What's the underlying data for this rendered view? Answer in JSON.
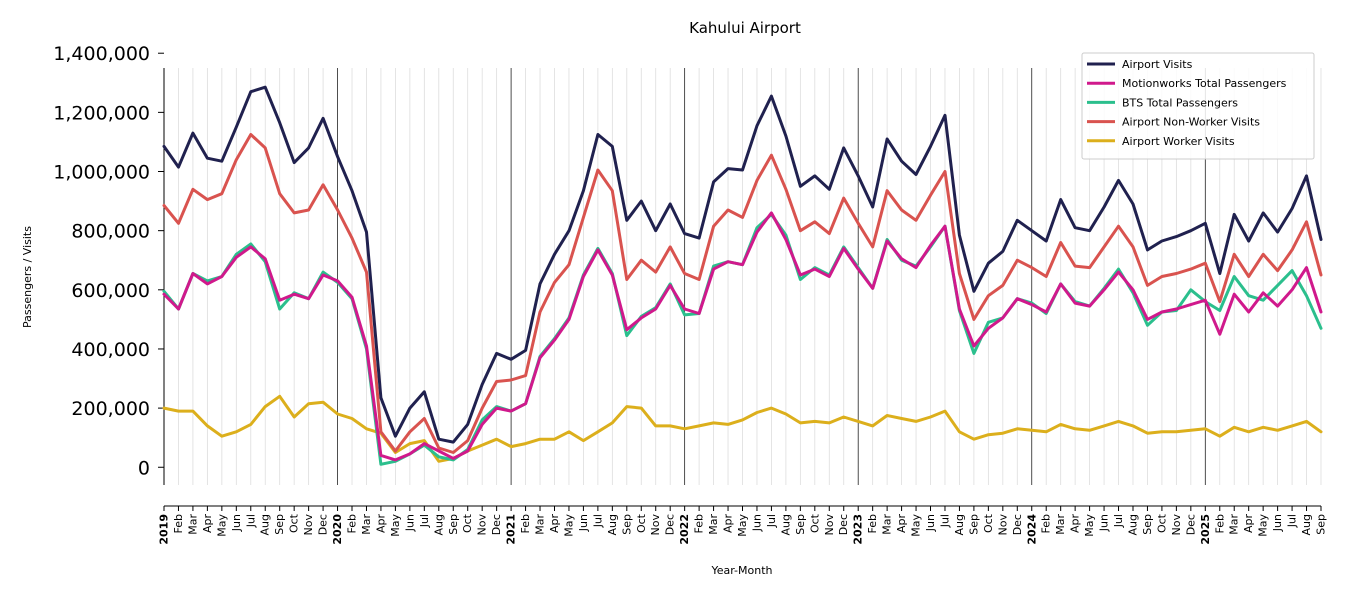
{
  "chart_data": {
    "type": "line",
    "title": "Kahului Airport",
    "xlabel": "Year-Month",
    "ylabel": "Passengers / Visits",
    "ylim": [
      -60000,
      1350000
    ],
    "yticks": [
      0,
      200000,
      400000,
      600000,
      800000,
      1000000,
      1200000,
      1400000
    ],
    "ytick_labels": [
      "0",
      "200,000",
      "400,000",
      "600,000",
      "800,000",
      "1,000,000",
      "1,200,000",
      "1,400,000"
    ],
    "grid": "vertical monthly gridlines, darker lines at each January",
    "legend_position": "top-right",
    "x": [
      "2019-01",
      "2019-02",
      "2019-03",
      "2019-04",
      "2019-05",
      "2019-06",
      "2019-07",
      "2019-08",
      "2019-09",
      "2019-10",
      "2019-11",
      "2019-12",
      "2020-01",
      "2020-02",
      "2020-03",
      "2020-04",
      "2020-05",
      "2020-06",
      "2020-07",
      "2020-08",
      "2020-09",
      "2020-10",
      "2020-11",
      "2020-12",
      "2021-01",
      "2021-02",
      "2021-03",
      "2021-04",
      "2021-05",
      "2021-06",
      "2021-07",
      "2021-08",
      "2021-09",
      "2021-10",
      "2021-11",
      "2021-12",
      "2022-01",
      "2022-02",
      "2022-03",
      "2022-04",
      "2022-05",
      "2022-06",
      "2022-07",
      "2022-08",
      "2022-09",
      "2022-10",
      "2022-11",
      "2022-12",
      "2023-01",
      "2023-02",
      "2023-03",
      "2023-04",
      "2023-05",
      "2023-06",
      "2023-07",
      "2023-08",
      "2023-09",
      "2023-10",
      "2023-11",
      "2023-12",
      "2024-01",
      "2024-02",
      "2024-03",
      "2024-04",
      "2024-05",
      "2024-06",
      "2024-07",
      "2024-08",
      "2024-09",
      "2024-10",
      "2024-11",
      "2024-12",
      "2025-01",
      "2025-02",
      "2025-03",
      "2025-04",
      "2025-05",
      "2025-06",
      "2025-07",
      "2025-08",
      "2025-09"
    ],
    "x_tick_labels": [
      "2019",
      "Feb",
      "Mar",
      "Apr",
      "May",
      "Jun",
      "Jul",
      "Aug",
      "Sep",
      "Oct",
      "Nov",
      "Dec",
      "2020",
      "Feb",
      "Mar",
      "Apr",
      "May",
      "Jun",
      "Jul",
      "Aug",
      "Sep",
      "Oct",
      "Nov",
      "Dec",
      "2021",
      "Feb",
      "Mar",
      "Apr",
      "May",
      "Jun",
      "Jul",
      "Aug",
      "Sep",
      "Oct",
      "Nov",
      "Dec",
      "2022",
      "Feb",
      "Mar",
      "Apr",
      "May",
      "Jun",
      "Jul",
      "Aug",
      "Sep",
      "Oct",
      "Nov",
      "Dec",
      "2023",
      "Feb",
      "Mar",
      "Apr",
      "May",
      "Jun",
      "Jul",
      "Aug",
      "Sep",
      "Oct",
      "Nov",
      "Dec",
      "2024",
      "Feb",
      "Mar",
      "Apr",
      "May",
      "Jun",
      "Jul",
      "Aug",
      "Sep",
      "Oct",
      "Nov",
      "Dec",
      "2025",
      "Feb",
      "Mar",
      "Apr",
      "May",
      "Jun",
      "Jul",
      "Aug",
      "Sep"
    ],
    "series": [
      {
        "name": "Airport Visits",
        "color": "#20214f",
        "values": [
          1085000,
          1015000,
          1130000,
          1045000,
          1035000,
          1150000,
          1270000,
          1285000,
          1165000,
          1030000,
          1080000,
          1180000,
          1050000,
          935000,
          795000,
          235000,
          105000,
          200000,
          255000,
          95000,
          85000,
          145000,
          280000,
          385000,
          365000,
          395000,
          620000,
          720000,
          800000,
          935000,
          1125000,
          1085000,
          835000,
          900000,
          800000,
          890000,
          790000,
          775000,
          965000,
          1010000,
          1005000,
          1155000,
          1255000,
          1120000,
          950000,
          985000,
          940000,
          1080000,
          985000,
          880000,
          1110000,
          1035000,
          990000,
          1085000,
          1190000,
          785000,
          595000,
          690000,
          730000,
          835000,
          800000,
          765000,
          905000,
          810000,
          800000,
          880000,
          970000,
          890000,
          735000,
          765000,
          780000,
          800000,
          825000,
          655000,
          855000,
          765000,
          860000,
          795000,
          875000,
          985000,
          770000
        ]
      },
      {
        "name": "Motionworks Total Passengers",
        "color": "#d0198c",
        "values": [
          585000,
          535000,
          655000,
          620000,
          645000,
          710000,
          745000,
          705000,
          565000,
          585000,
          570000,
          650000,
          630000,
          575000,
          410000,
          40000,
          25000,
          45000,
          80000,
          55000,
          30000,
          55000,
          145000,
          200000,
          190000,
          215000,
          370000,
          430000,
          500000,
          645000,
          735000,
          650000,
          465000,
          505000,
          535000,
          615000,
          535000,
          520000,
          670000,
          695000,
          685000,
          795000,
          860000,
          770000,
          650000,
          670000,
          645000,
          740000,
          670000,
          605000,
          765000,
          705000,
          675000,
          750000,
          815000,
          535000,
          410000,
          470000,
          505000,
          570000,
          550000,
          525000,
          620000,
          555000,
          545000,
          600000,
          660000,
          600000,
          500000,
          525000,
          535000,
          550000,
          565000,
          450000,
          585000,
          525000,
          590000,
          545000,
          600000,
          675000,
          525000
        ]
      },
      {
        "name": "BTS Total Passengers",
        "color": "#2bbf8d",
        "values": [
          595000,
          535000,
          655000,
          630000,
          645000,
          720000,
          755000,
          695000,
          535000,
          590000,
          570000,
          660000,
          625000,
          570000,
          400000,
          10000,
          20000,
          45000,
          75000,
          35000,
          25000,
          60000,
          160000,
          205000,
          190000,
          215000,
          375000,
          435000,
          505000,
          650000,
          740000,
          655000,
          445000,
          510000,
          540000,
          620000,
          515000,
          520000,
          680000,
          695000,
          685000,
          810000,
          855000,
          785000,
          635000,
          675000,
          650000,
          745000,
          675000,
          605000,
          770000,
          700000,
          680000,
          745000,
          815000,
          530000,
          385000,
          490000,
          505000,
          570000,
          555000,
          520000,
          620000,
          560000,
          545000,
          605000,
          670000,
          590000,
          480000,
          525000,
          530000,
          600000,
          560000,
          530000,
          645000,
          580000,
          565000,
          615000,
          665000,
          580000,
          470000
        ]
      },
      {
        "name": "Airport Non-Worker Visits",
        "color": "#d9534f",
        "values": [
          885000,
          825000,
          940000,
          905000,
          925000,
          1040000,
          1125000,
          1080000,
          925000,
          860000,
          870000,
          955000,
          870000,
          775000,
          660000,
          120000,
          55000,
          120000,
          165000,
          65000,
          50000,
          90000,
          200000,
          290000,
          295000,
          310000,
          525000,
          625000,
          685000,
          845000,
          1005000,
          935000,
          635000,
          700000,
          660000,
          745000,
          655000,
          635000,
          815000,
          870000,
          845000,
          970000,
          1055000,
          940000,
          800000,
          830000,
          790000,
          910000,
          825000,
          745000,
          935000,
          870000,
          835000,
          920000,
          1000000,
          655000,
          500000,
          580000,
          615000,
          700000,
          675000,
          645000,
          760000,
          680000,
          675000,
          745000,
          815000,
          745000,
          615000,
          645000,
          655000,
          670000,
          690000,
          560000,
          720000,
          645000,
          720000,
          665000,
          735000,
          830000,
          650000
        ]
      },
      {
        "name": "Airport Worker Visits",
        "color": "#dcaf1c",
        "values": [
          200000,
          190000,
          190000,
          140000,
          105000,
          120000,
          145000,
          205000,
          240000,
          170000,
          215000,
          220000,
          180000,
          165000,
          130000,
          115000,
          50000,
          80000,
          90000,
          20000,
          30000,
          55000,
          75000,
          95000,
          70000,
          80000,
          95000,
          95000,
          120000,
          90000,
          120000,
          150000,
          205000,
          200000,
          140000,
          140000,
          130000,
          140000,
          150000,
          145000,
          160000,
          185000,
          200000,
          180000,
          150000,
          155000,
          150000,
          170000,
          155000,
          140000,
          175000,
          165000,
          155000,
          170000,
          190000,
          120000,
          95000,
          110000,
          115000,
          130000,
          125000,
          120000,
          145000,
          130000,
          125000,
          140000,
          155000,
          140000,
          115000,
          120000,
          120000,
          125000,
          130000,
          105000,
          135000,
          120000,
          135000,
          125000,
          140000,
          155000,
          120000
        ]
      }
    ]
  }
}
